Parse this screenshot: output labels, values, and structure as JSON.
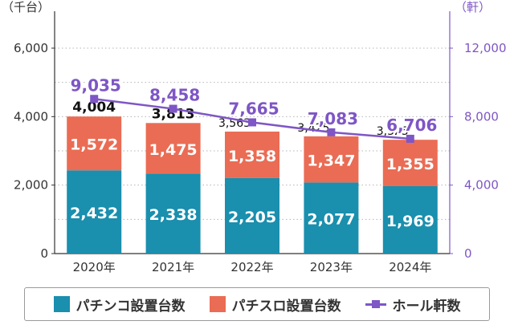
{
  "chart_data": {
    "type": "bar",
    "categories": [
      "2020年",
      "2021年",
      "2022年",
      "2023年",
      "2024年"
    ],
    "series": [
      {
        "name": "パチンコ設置台数",
        "values": [
          2432,
          2338,
          2205,
          2077,
          1969
        ],
        "color": "#1a8fae",
        "axis": "left"
      },
      {
        "name": "パチスロ設置台数",
        "values": [
          1572,
          1475,
          1358,
          1347,
          1355
        ],
        "color": "#ea6c54",
        "axis": "left"
      },
      {
        "name": "ホール軒数",
        "values": [
          9035,
          8458,
          7665,
          7083,
          6706
        ],
        "color": "#7e56c6",
        "axis": "right",
        "type": "line"
      }
    ],
    "totals": [
      4004,
      3813,
      3563,
      3425,
      3325
    ],
    "totals_labels": [
      "4,004",
      "3,813",
      "3,563",
      "3,425",
      "3,325"
    ],
    "left_axis": {
      "unit_label": "（千台）",
      "ylim": [
        0,
        6000
      ],
      "ticks": [
        0,
        2000,
        4000,
        6000
      ],
      "tick_labels": [
        "0",
        "2,000",
        "4,000",
        "6,000"
      ]
    },
    "right_axis": {
      "unit_label": "（軒）",
      "ylim": [
        0,
        12000
      ],
      "ticks": [
        0,
        4000,
        8000,
        12000
      ],
      "tick_labels": [
        "0",
        "4,000",
        "8,000",
        "12,000"
      ]
    },
    "grid": true,
    "legend_position": "bottom",
    "stacked": true
  },
  "legend": {
    "items": [
      {
        "label": "パチンコ設置台数",
        "color": "#1a8fae"
      },
      {
        "label": "パチスロ設置台数",
        "color": "#ea6c54"
      },
      {
        "label": "ホール軒数",
        "color": "#7e56c6"
      }
    ]
  }
}
